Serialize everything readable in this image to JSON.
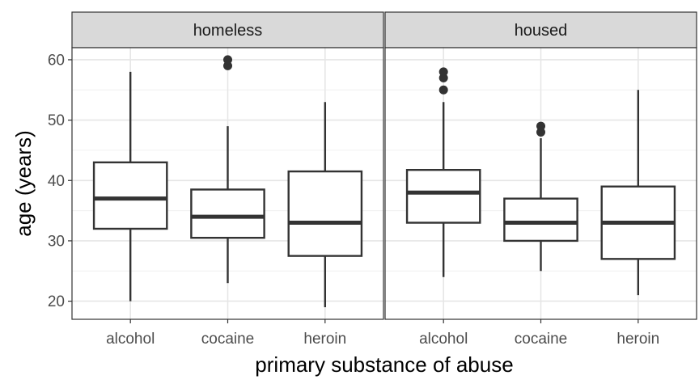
{
  "chart_data": {
    "type": "boxplot",
    "xlabel": "primary substance of abuse",
    "ylabel": "age (years)",
    "ylim": [
      17,
      62
    ],
    "yticks": [
      20,
      30,
      40,
      50,
      60
    ],
    "categories": [
      "alcohol",
      "cocaine",
      "heroin"
    ],
    "grid": true,
    "panels": [
      {
        "name": "homeless",
        "boxes": [
          {
            "category": "alcohol",
            "min": 20,
            "q1": 32,
            "median": 37,
            "q3": 43,
            "max": 58,
            "outliers": []
          },
          {
            "category": "cocaine",
            "min": 23,
            "q1": 30.5,
            "median": 34,
            "q3": 38.5,
            "max": 49,
            "outliers": [
              59,
              60
            ]
          },
          {
            "category": "heroin",
            "min": 19,
            "q1": 27.5,
            "median": 33,
            "q3": 41.5,
            "max": 53,
            "outliers": []
          }
        ]
      },
      {
        "name": "housed",
        "boxes": [
          {
            "category": "alcohol",
            "min": 24,
            "q1": 33,
            "median": 38,
            "q3": 41.75,
            "max": 53,
            "outliers": [
              55,
              57,
              58
            ]
          },
          {
            "category": "cocaine",
            "min": 25,
            "q1": 30,
            "median": 33,
            "q3": 37,
            "max": 47,
            "outliers": [
              48,
              49
            ]
          },
          {
            "category": "heroin",
            "min": 21,
            "q1": 27,
            "median": 33,
            "q3": 39,
            "max": 55,
            "outliers": []
          }
        ]
      }
    ]
  }
}
